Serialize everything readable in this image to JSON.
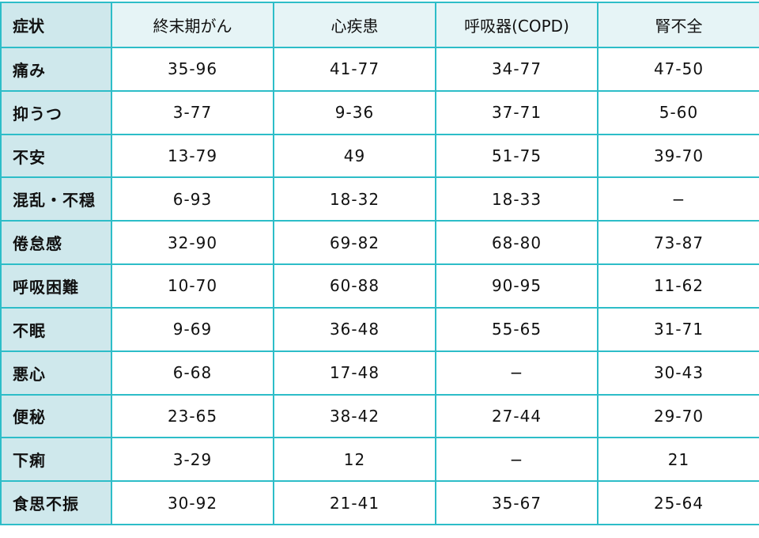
{
  "table": {
    "headers": [
      "症状",
      "終末期がん",
      "心疾患",
      "呼吸器(COPD)",
      "腎不全"
    ],
    "rows": [
      [
        "痛み",
        "35-96",
        "41-77",
        "34-77",
        "47-50"
      ],
      [
        "抑うつ",
        "3-77",
        "9-36",
        "37-71",
        "5-60"
      ],
      [
        "不安",
        "13-79",
        "49",
        "51-75",
        "39-70"
      ],
      [
        "混乱・不穏",
        "6-93",
        "18-32",
        "18-33",
        "−"
      ],
      [
        "倦怠感",
        "32-90",
        "69-82",
        "68-80",
        "73-87"
      ],
      [
        "呼吸困難",
        "10-70",
        "60-88",
        "90-95",
        "11-62"
      ],
      [
        "不眠",
        "9-69",
        "36-48",
        "55-65",
        "31-71"
      ],
      [
        "悪心",
        "6-68",
        "17-48",
        "−",
        "30-43"
      ],
      [
        "便秘",
        "23-65",
        "38-42",
        "27-44",
        "29-70"
      ],
      [
        "下痢",
        "3-29",
        "12",
        "−",
        "21"
      ],
      [
        "食思不振",
        "30-92",
        "21-41",
        "35-67",
        "25-64"
      ]
    ]
  },
  "colors": {
    "border": "#2dbdc8",
    "header_bg": "#e6f4f6",
    "first_col_bg": "#cfe8ec"
  }
}
